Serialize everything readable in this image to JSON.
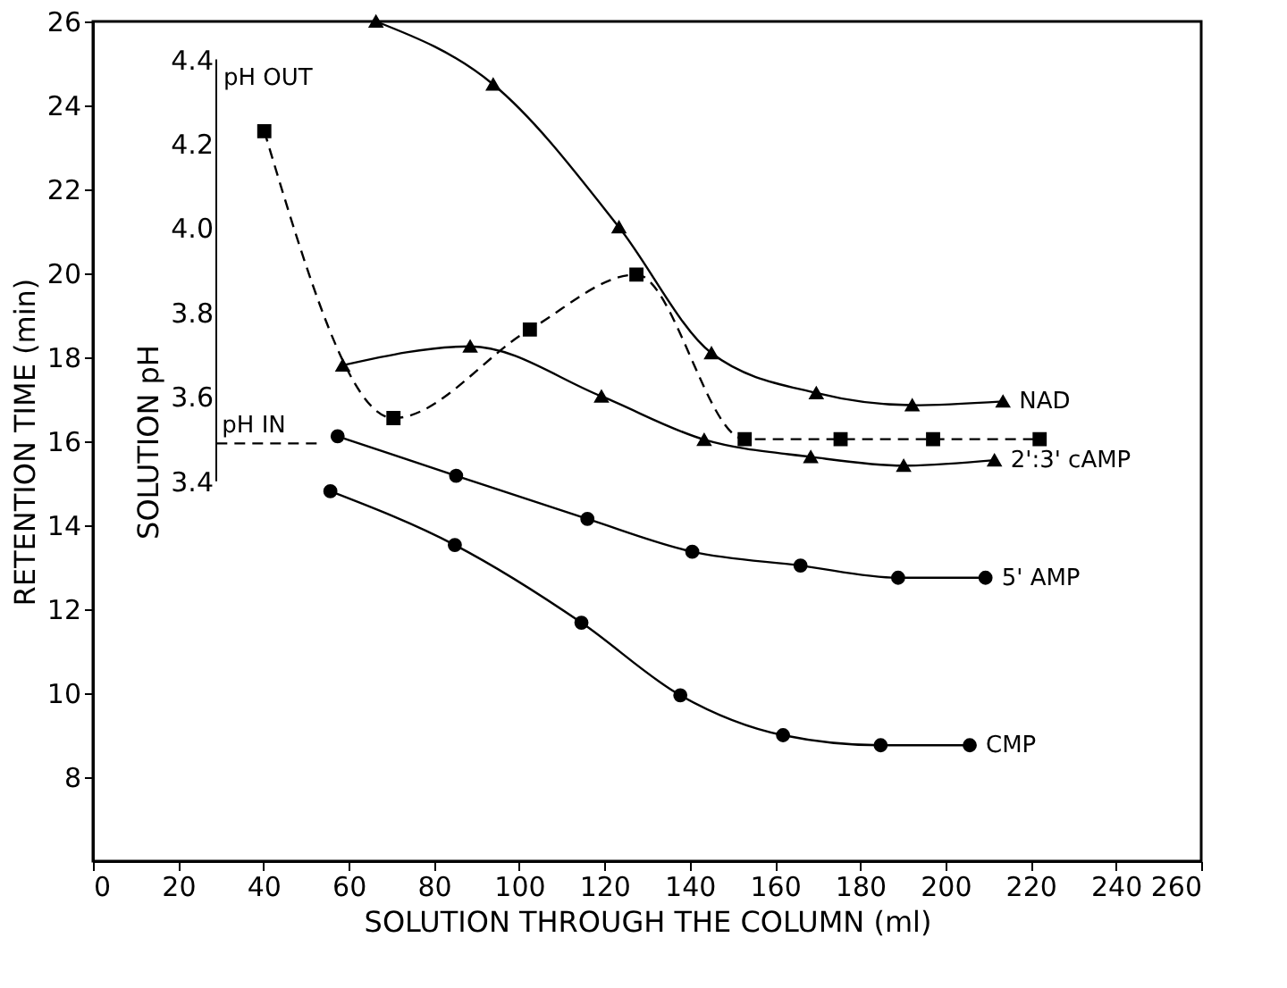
{
  "chart_data": {
    "type": "line",
    "xlabel": "SOLUTION  THROUGH  THE  COLUMN  (ml)",
    "ylabel": "RETENTION  TIME  (min)",
    "y2label": "SOLUTION  pH",
    "xlim": [
      0,
      260
    ],
    "xticks": [
      0,
      20,
      40,
      60,
      80,
      100,
      120,
      140,
      160,
      180,
      200,
      220,
      240,
      260
    ],
    "ylim": [
      6,
      26
    ],
    "yticks": [
      8,
      10,
      12,
      14,
      16,
      18,
      20,
      22,
      24,
      26
    ],
    "y2lim": [
      2.5,
      4.49
    ],
    "y2ticks": [
      3.4,
      3.6,
      3.8,
      {
        "value": 4,
        "label": "4.0"
      },
      4.2,
      4.4
    ],
    "grid": false,
    "annotations": [
      "pH OUT",
      "pH IN"
    ],
    "series": [
      {
        "name": "NAD",
        "color": "#000000",
        "marker": "triangle",
        "line_style": "solid",
        "x": [
          66.4,
          93.9,
          123.4,
          145.1,
          169.7,
          192.2,
          213.5
        ],
        "values": [
          26.0,
          24.5,
          21.1,
          18.1,
          17.15,
          16.86,
          16.95
        ]
      },
      {
        "name": "2':3' cAMP",
        "color": "#000000",
        "marker": "triangle",
        "line_style": "solid",
        "x": [
          58.6,
          88.5,
          119.3,
          143.4,
          168.4,
          190.2,
          211.5
        ],
        "values": [
          17.81,
          18.26,
          17.07,
          16.04,
          15.63,
          15.42,
          15.55
        ]
      },
      {
        "name": "5' AMP",
        "color": "#000000",
        "marker": "circle",
        "line_style": "solid",
        "x": [
          57.4,
          85.2,
          116.0,
          140.6,
          166.0,
          188.9,
          209.4
        ],
        "values": [
          16.12,
          15.18,
          14.15,
          13.37,
          13.04,
          12.75,
          12.75
        ]
      },
      {
        "name": "CMP",
        "color": "#000000",
        "marker": "circle",
        "line_style": "solid",
        "x": [
          55.7,
          84.9,
          114.6,
          137.8,
          161.9,
          184.8,
          205.7
        ],
        "values": [
          14.81,
          13.53,
          11.68,
          9.95,
          9.0,
          8.76,
          8.76
        ]
      },
      {
        "color": "#000000",
        "marker": "square",
        "line_style": "dashed",
        "axis": "y2",
        "x": [
          40.2,
          70.5,
          102.5,
          127.5,
          152.9,
          175.4,
          197.1,
          222.1
        ],
        "values": [
          4.23,
          3.55,
          3.76,
          3.89,
          3.5,
          3.5,
          3.5,
          3.5
        ]
      },
      {
        "color": "#000000",
        "marker": "none",
        "line_style": "dashed",
        "axis": "y2",
        "x": [
          29,
          53
        ],
        "values": [
          3.49,
          3.49
        ]
      }
    ]
  }
}
